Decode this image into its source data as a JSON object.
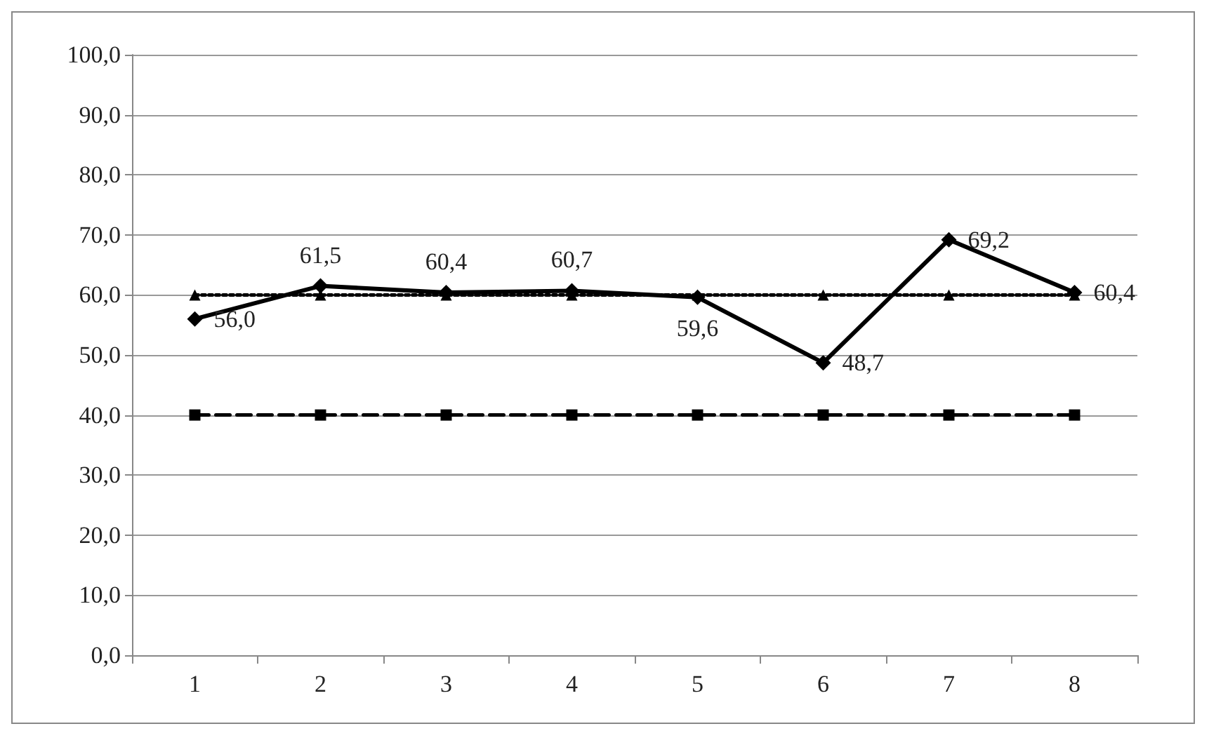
{
  "chart_data": {
    "type": "line",
    "categories": [
      "1",
      "2",
      "3",
      "4",
      "5",
      "6",
      "7",
      "8"
    ],
    "series": [
      {
        "color": "#000000",
        "marker": "diamond",
        "line_style": "solid",
        "values": [
          56.0,
          61.5,
          60.4,
          60.7,
          59.6,
          48.7,
          69.2,
          60.4
        ],
        "value_labels": [
          "56,0",
          "61,5",
          "60,4",
          "60,7",
          "59,6",
          "48,7",
          "69,2",
          "60,4"
        ]
      },
      {
        "color": "#000000",
        "marker": "triangle",
        "line_style": "dotted",
        "values": [
          60,
          60,
          60,
          60,
          60,
          60,
          60,
          60
        ]
      },
      {
        "color": "#000000",
        "marker": "square",
        "line_style": "dashed",
        "values": [
          40,
          40,
          40,
          40,
          40,
          40,
          40,
          40
        ]
      }
    ],
    "ylim": [
      0,
      100
    ],
    "yticks": [
      {
        "value": 0,
        "label": "0,0"
      },
      {
        "value": 10,
        "label": "10,0"
      },
      {
        "value": 20,
        "label": "20,0"
      },
      {
        "value": 30,
        "label": "30,0"
      },
      {
        "value": 40,
        "label": "40,0"
      },
      {
        "value": 50,
        "label": "50,0"
      },
      {
        "value": 60,
        "label": "60,0"
      },
      {
        "value": 70,
        "label": "70,0"
      },
      {
        "value": 80,
        "label": "80,0"
      },
      {
        "value": 90,
        "label": "90,0"
      },
      {
        "value": 100,
        "label": "100,0"
      }
    ],
    "grid": "y"
  }
}
